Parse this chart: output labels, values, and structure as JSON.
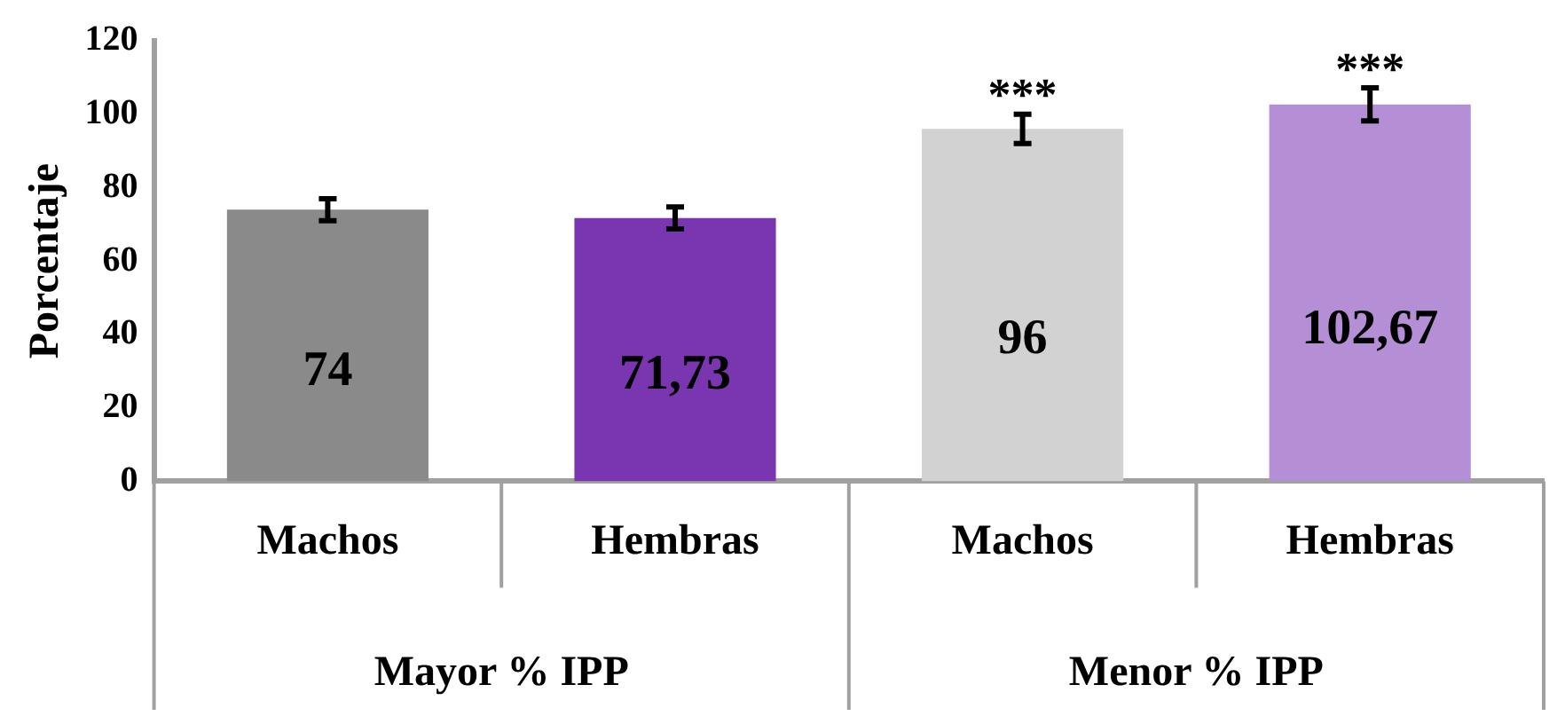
{
  "chart_data": {
    "type": "bar",
    "ylabel": "Porcentaje",
    "categories": [
      "Machos",
      "Hembras",
      "Machos",
      "Hembras"
    ],
    "values": [
      74,
      71.73,
      96,
      102.67
    ],
    "colors": [
      "#8a8a8a",
      "#7a35b0",
      "#d2d2d2",
      "#b48fd6"
    ],
    "value_labels": [
      "74",
      "71,73",
      "96",
      "102,67"
    ],
    "errors": [
      3,
      3,
      4,
      4.5
    ],
    "ylim": [
      0,
      120
    ],
    "yticks": [
      0,
      20,
      40,
      60,
      80,
      100,
      120
    ],
    "grid": false,
    "legend": false,
    "annotations": [
      "***",
      "***",
      "Mayor % IPP",
      "Menor % IPP"
    ]
  }
}
